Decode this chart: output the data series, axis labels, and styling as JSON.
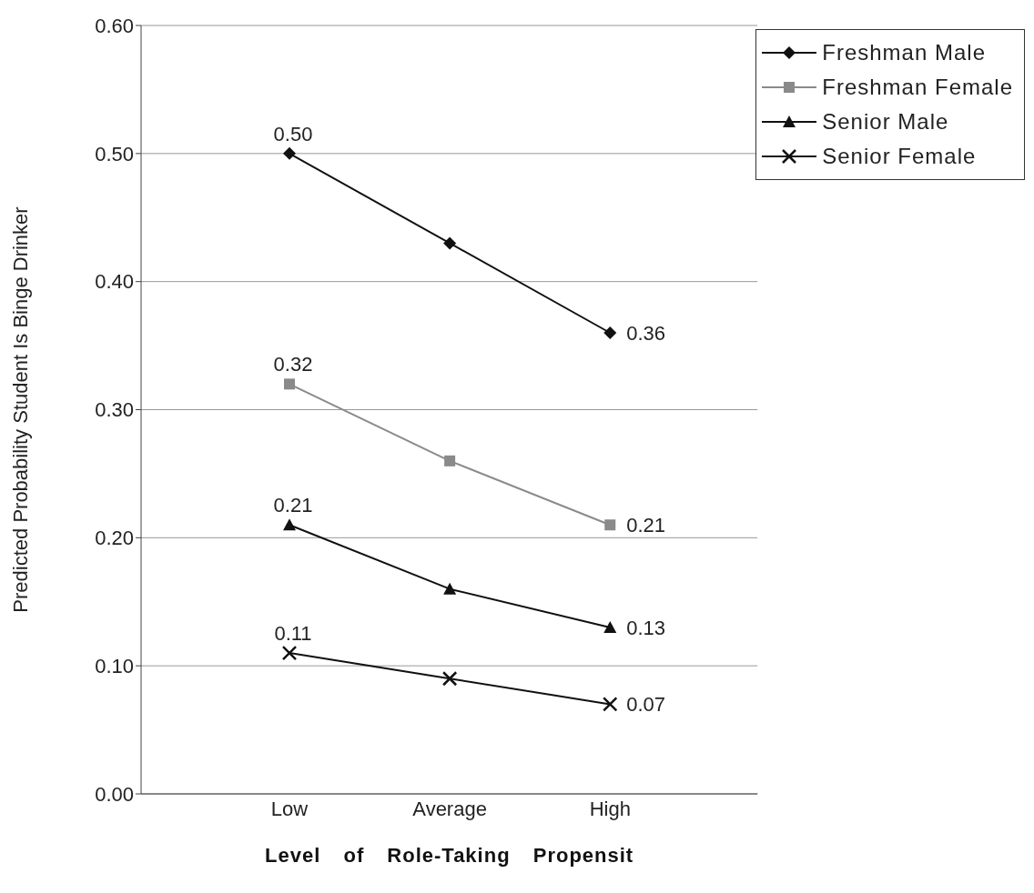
{
  "chart_data": {
    "type": "line",
    "xlabel": "Level of Role-Taking Propensit",
    "ylabel": "Predicted Probability Student Is Binge Drinker",
    "categories": [
      "Low",
      "Average",
      "High"
    ],
    "series": [
      {
        "name": "Freshman Male",
        "color": "#111111",
        "marker": "diamond",
        "values": [
          0.5,
          0.43,
          0.36
        ],
        "value_labels": [
          "0.50",
          null,
          "0.36"
        ]
      },
      {
        "name": "Freshman Female",
        "color": "#8a8a8a",
        "marker": "square",
        "values": [
          0.32,
          0.26,
          0.21
        ],
        "value_labels": [
          "0.32",
          null,
          "0.21"
        ]
      },
      {
        "name": "Senior Male",
        "color": "#111111",
        "marker": "triangle",
        "values": [
          0.21,
          0.16,
          0.13
        ],
        "value_labels": [
          "0.21",
          null,
          "0.13"
        ]
      },
      {
        "name": "Senior Female",
        "color": "#111111",
        "marker": "cross",
        "values": [
          0.11,
          0.09,
          0.07
        ],
        "value_labels": [
          "0.11",
          null,
          "0.07"
        ]
      }
    ],
    "ylim": [
      0,
      0.6
    ],
    "yticks": [
      {
        "value": 0,
        "label": "0.00"
      },
      {
        "value": 0.1,
        "label": "0.10"
      },
      {
        "value": 0.2,
        "label": "0.20"
      },
      {
        "value": 0.3,
        "label": "0.30"
      },
      {
        "value": 0.4,
        "label": "0.40"
      },
      {
        "value": 0.5,
        "label": "0.50"
      },
      {
        "value": 0.6,
        "label": "0.60"
      }
    ],
    "grid": "y",
    "legend": "top right"
  }
}
